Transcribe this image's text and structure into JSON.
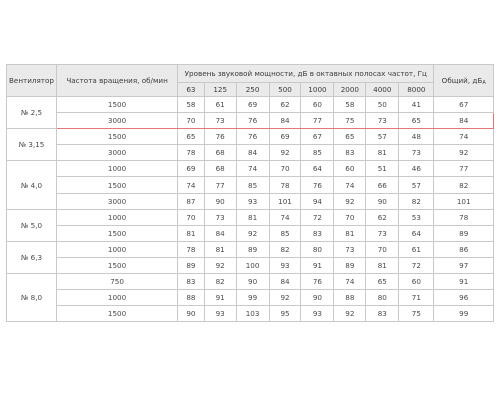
{
  "headers": {
    "fan": "Вентилятор",
    "rpm": "Частота вращения, об/мин",
    "band_group": "Уровень звуковой мощности, дБ в октавных полосах частот, Гц",
    "total": "Общий, дБ",
    "total_sub": "A",
    "bands": [
      "63",
      "125",
      "250",
      "500",
      "1000",
      "2000",
      "4000",
      "8000"
    ]
  },
  "groups": [
    {
      "fan": "№ 2,5",
      "rows": [
        {
          "rpm": "1500",
          "vals": [
            "58",
            "61",
            "69",
            "62",
            "60",
            "58",
            "50",
            "41"
          ],
          "total": "67"
        },
        {
          "rpm": "3000",
          "vals": [
            "70",
            "73",
            "76",
            "84",
            "77",
            "75",
            "73",
            "65"
          ],
          "total": "84"
        }
      ]
    },
    {
      "fan": "№ 3,15",
      "rows": [
        {
          "rpm": "1500",
          "vals": [
            "65",
            "76",
            "76",
            "69",
            "67",
            "65",
            "57",
            "48"
          ],
          "total": "74"
        },
        {
          "rpm": "3000",
          "vals": [
            "78",
            "68",
            "84",
            "92",
            "85",
            "83",
            "81",
            "73"
          ],
          "total": "92"
        }
      ]
    },
    {
      "fan": "№ 4,0",
      "rows": [
        {
          "rpm": "1000",
          "vals": [
            "69",
            "68",
            "74",
            "70",
            "64",
            "60",
            "51",
            "46"
          ],
          "total": "77"
        },
        {
          "rpm": "1500",
          "vals": [
            "74",
            "77",
            "85",
            "78",
            "76",
            "74",
            "66",
            "57"
          ],
          "total": "82"
        },
        {
          "rpm": "3000",
          "vals": [
            "87",
            "90",
            "93",
            "101",
            "94",
            "92",
            "90",
            "82"
          ],
          "total": "101"
        }
      ]
    },
    {
      "fan": "№ 5,0",
      "rows": [
        {
          "rpm": "1000",
          "vals": [
            "70",
            "73",
            "81",
            "74",
            "72",
            "70",
            "62",
            "53"
          ],
          "total": "78"
        },
        {
          "rpm": "1500",
          "vals": [
            "81",
            "84",
            "92",
            "85",
            "83",
            "81",
            "73",
            "64"
          ],
          "total": "89"
        }
      ]
    },
    {
      "fan": "№ 6,3",
      "rows": [
        {
          "rpm": "1000",
          "vals": [
            "78",
            "81",
            "89",
            "82",
            "80",
            "73",
            "70",
            "61"
          ],
          "total": "86"
        },
        {
          "rpm": "1500",
          "vals": [
            "89",
            "92",
            "100",
            "93",
            "91",
            "89",
            "81",
            "72"
          ],
          "total": "97"
        }
      ]
    },
    {
      "fan": "№ 8,0",
      "rows": [
        {
          "rpm": "750",
          "vals": [
            "83",
            "82",
            "90",
            "84",
            "76",
            "74",
            "65",
            "60"
          ],
          "total": "91"
        },
        {
          "rpm": "1000",
          "vals": [
            "88",
            "91",
            "99",
            "92",
            "90",
            "88",
            "80",
            "71"
          ],
          "total": "96"
        },
        {
          "rpm": "1500",
          "vals": [
            "90",
            "93",
            "103",
            "95",
            "93",
            "92",
            "83",
            "75"
          ],
          "total": "99"
        }
      ]
    }
  ],
  "highlight": {
    "group": 0,
    "row": 1,
    "color": "#e07a7a"
  }
}
